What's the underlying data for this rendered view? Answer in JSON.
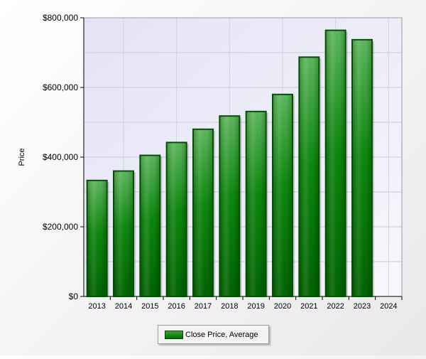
{
  "chart_data": {
    "type": "bar",
    "title": "",
    "xlabel": "",
    "ylabel": "Price",
    "categories": [
      "2013",
      "2014",
      "2015",
      "2016",
      "2017",
      "2018",
      "2019",
      "2020",
      "2021",
      "2022",
      "2023"
    ],
    "x_ticks": [
      "2013",
      "2014",
      "2015",
      "2016",
      "2017",
      "2018",
      "2019",
      "2020",
      "2021",
      "2022",
      "2023",
      "2024"
    ],
    "series": [
      {
        "name": "Close Price, Average",
        "color": "#007a00",
        "values": [
          333000,
          360000,
          405000,
          442000,
          480000,
          518000,
          531000,
          580000,
          687000,
          764000,
          737000
        ]
      }
    ],
    "ylim": [
      0,
      800000
    ],
    "y_ticks": [
      0,
      200000,
      400000,
      600000,
      800000
    ],
    "y_tick_labels": [
      "$0",
      "$200,000",
      "$400,000",
      "$600,000",
      "$800,000"
    ],
    "grid": true,
    "legend_position": "bottom-center"
  },
  "legend": {
    "label": "Close Price, Average"
  },
  "colors": {
    "plot_background": "#ebebfa",
    "bar_fill": "#007a00",
    "bar_border": "#005500"
  }
}
